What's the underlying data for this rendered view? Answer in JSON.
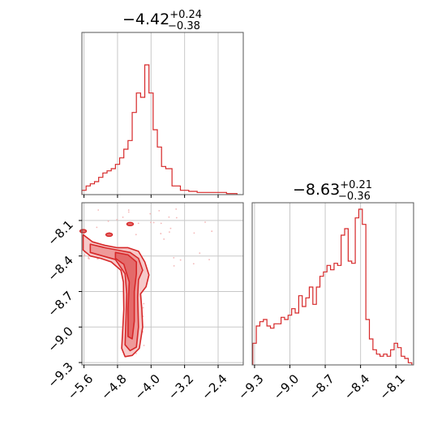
{
  "chart_data": [
    {
      "type": "histogram",
      "panel": "top-left marginal",
      "title": {
        "main": "−4.42",
        "sup": "+0.24",
        "sub": "−0.38"
      },
      "x_range": [
        -5.65,
        -1.8
      ],
      "y_ticks_visible": false,
      "grid": true,
      "color": "#d62728",
      "x": [
        -5.6,
        -5.5,
        -5.4,
        -5.3,
        -5.2,
        -5.1,
        -5.0,
        -4.9,
        -4.8,
        -4.7,
        -4.6,
        -4.5,
        -4.4,
        -4.3,
        -4.2,
        -4.1,
        -4.0,
        -3.9,
        -3.8,
        -3.7,
        -3.6,
        -3.4,
        -3.2,
        -3.0,
        -2.8,
        -2.4,
        -2.0
      ],
      "values": [
        0.02,
        0.04,
        0.05,
        0.06,
        0.08,
        0.1,
        0.11,
        0.12,
        0.14,
        0.17,
        0.21,
        0.25,
        0.38,
        0.47,
        0.45,
        0.6,
        0.47,
        0.3,
        0.22,
        0.13,
        0.12,
        0.04,
        0.02,
        0.015,
        0.01,
        0.01,
        0.005
      ]
    },
    {
      "type": "contour",
      "panel": "bottom-left 2D",
      "x_range": [
        -5.65,
        -1.8
      ],
      "y_range": [
        -9.32,
        -7.95
      ],
      "x_ticks": [
        -5.6,
        -4.8,
        -4.0,
        -3.2,
        -2.4
      ],
      "y_ticks": [
        -8.1,
        -8.4,
        -8.7,
        -9.0,
        -9.3
      ],
      "x_tick_labels": [
        "−5.6",
        "−4.8",
        "−4.0",
        "−3.2",
        "−2.4"
      ],
      "y_tick_labels": [
        "−8.1",
        "−8.4",
        "−8.7",
        "−9.0",
        "−9.3"
      ],
      "grid": true,
      "color": "#d62728",
      "contours": [
        {
          "level": "outer",
          "points": [
            [
              -5.62,
              -8.22
            ],
            [
              -5.4,
              -8.28
            ],
            [
              -5.1,
              -8.31
            ],
            [
              -4.8,
              -8.33
            ],
            [
              -4.55,
              -8.33
            ],
            [
              -4.3,
              -8.36
            ],
            [
              -4.15,
              -8.45
            ],
            [
              -4.05,
              -8.56
            ],
            [
              -4.12,
              -8.66
            ],
            [
              -4.25,
              -8.72
            ],
            [
              -4.22,
              -8.85
            ],
            [
              -4.2,
              -9.0
            ],
            [
              -4.28,
              -9.18
            ],
            [
              -4.45,
              -9.24
            ],
            [
              -4.62,
              -9.25
            ],
            [
              -4.7,
              -9.18
            ],
            [
              -4.68,
              -9.05
            ],
            [
              -4.65,
              -8.85
            ],
            [
              -4.66,
              -8.62
            ],
            [
              -4.72,
              -8.52
            ],
            [
              -4.95,
              -8.45
            ],
            [
              -5.2,
              -8.42
            ],
            [
              -5.45,
              -8.4
            ],
            [
              -5.62,
              -8.35
            ]
          ]
        },
        {
          "level": "middle",
          "points": [
            [
              -5.45,
              -8.3
            ],
            [
              -5.1,
              -8.33
            ],
            [
              -4.8,
              -8.35
            ],
            [
              -4.5,
              -8.37
            ],
            [
              -4.3,
              -8.42
            ],
            [
              -4.2,
              -8.52
            ],
            [
              -4.3,
              -8.6
            ],
            [
              -4.32,
              -8.75
            ],
            [
              -4.3,
              -9.0
            ],
            [
              -4.35,
              -9.17
            ],
            [
              -4.5,
              -9.2
            ],
            [
              -4.62,
              -9.15
            ],
            [
              -4.6,
              -8.95
            ],
            [
              -4.58,
              -8.72
            ],
            [
              -4.62,
              -8.55
            ],
            [
              -4.85,
              -8.43
            ],
            [
              -5.15,
              -8.4
            ],
            [
              -5.45,
              -8.37
            ]
          ]
        },
        {
          "level": "inner",
          "points": [
            [
              -4.85,
              -8.37
            ],
            [
              -4.55,
              -8.39
            ],
            [
              -4.35,
              -8.45
            ],
            [
              -4.35,
              -8.55
            ],
            [
              -4.4,
              -8.7
            ],
            [
              -4.4,
              -8.95
            ],
            [
              -4.45,
              -9.1
            ],
            [
              -4.55,
              -9.08
            ],
            [
              -4.55,
              -8.85
            ],
            [
              -4.52,
              -8.62
            ],
            [
              -4.65,
              -8.47
            ],
            [
              -4.85,
              -8.42
            ]
          ]
        }
      ],
      "islands": [
        [
          -4.5,
          -8.13
        ],
        [
          -5.62,
          -8.19
        ],
        [
          -5.0,
          -8.22
        ]
      ]
    },
    {
      "type": "histogram",
      "panel": "bottom-right marginal",
      "title": {
        "main": "−8.63",
        "sup": "+0.21",
        "sub": "−0.36"
      },
      "x_range": [
        -9.32,
        -7.95
      ],
      "x_ticks": [
        -9.3,
        -9.0,
        -8.7,
        -8.4,
        -8.1
      ],
      "x_tick_labels": [
        "−9.3",
        "−9.0",
        "−8.7",
        "−8.4",
        "−8.1"
      ],
      "y_ticks_visible": false,
      "grid": true,
      "color": "#d62728",
      "x": [
        -9.3,
        -9.27,
        -9.24,
        -9.21,
        -9.18,
        -9.15,
        -9.12,
        -9.09,
        -9.06,
        -9.03,
        -9.0,
        -8.97,
        -8.94,
        -8.91,
        -8.88,
        -8.85,
        -8.82,
        -8.79,
        -8.76,
        -8.73,
        -8.7,
        -8.67,
        -8.64,
        -8.61,
        -8.58,
        -8.55,
        -8.52,
        -8.49,
        -8.46,
        -8.43,
        -8.4,
        -8.37,
        -8.34,
        -8.31,
        -8.28,
        -8.25,
        -8.22,
        -8.19,
        -8.16,
        -8.13,
        -8.1,
        -8.07,
        -8.04,
        -8.01,
        -7.98
      ],
      "values": [
        0.1,
        0.18,
        0.2,
        0.21,
        0.18,
        0.17,
        0.19,
        0.19,
        0.22,
        0.21,
        0.23,
        0.26,
        0.24,
        0.32,
        0.27,
        0.31,
        0.36,
        0.28,
        0.36,
        0.41,
        0.43,
        0.46,
        0.44,
        0.47,
        0.46,
        0.6,
        0.63,
        0.48,
        0.47,
        0.68,
        0.72,
        0.65,
        0.21,
        0.12,
        0.07,
        0.05,
        0.04,
        0.05,
        0.04,
        0.07,
        0.1,
        0.08,
        0.04,
        0.03,
        0.01
      ]
    }
  ]
}
